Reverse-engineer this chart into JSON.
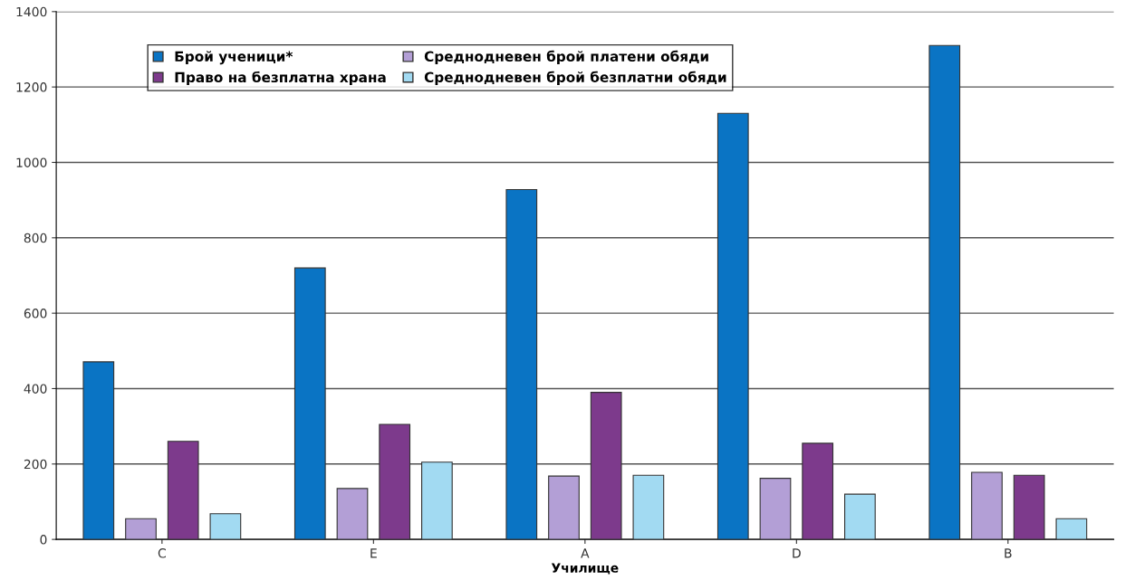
{
  "chart_data": {
    "type": "bar",
    "xlabel": "Училище",
    "categories": [
      "C",
      "E",
      "A",
      "D",
      "B"
    ],
    "series": [
      {
        "name": "Брой ученици*",
        "color": "#0a74c4",
        "values": [
          471,
          720,
          928,
          1130,
          1310
        ]
      },
      {
        "name": "Среднодневен брой платени обяди",
        "color": "#b39fd6",
        "values": [
          55,
          135,
          168,
          162,
          178
        ]
      },
      {
        "name": "Право на безплатна храна",
        "color": "#7d3a8c",
        "values": [
          260,
          305,
          390,
          255,
          170
        ]
      },
      {
        "name": "Среднодневен брой безплатни обяди",
        "color": "#a2daf2",
        "values": [
          68,
          205,
          170,
          120,
          55
        ]
      }
    ],
    "ylim": [
      0,
      1400
    ],
    "yticks": [
      0,
      200,
      400,
      600,
      800,
      1000,
      1200,
      1400
    ],
    "grid": "y",
    "legend": "top left"
  }
}
